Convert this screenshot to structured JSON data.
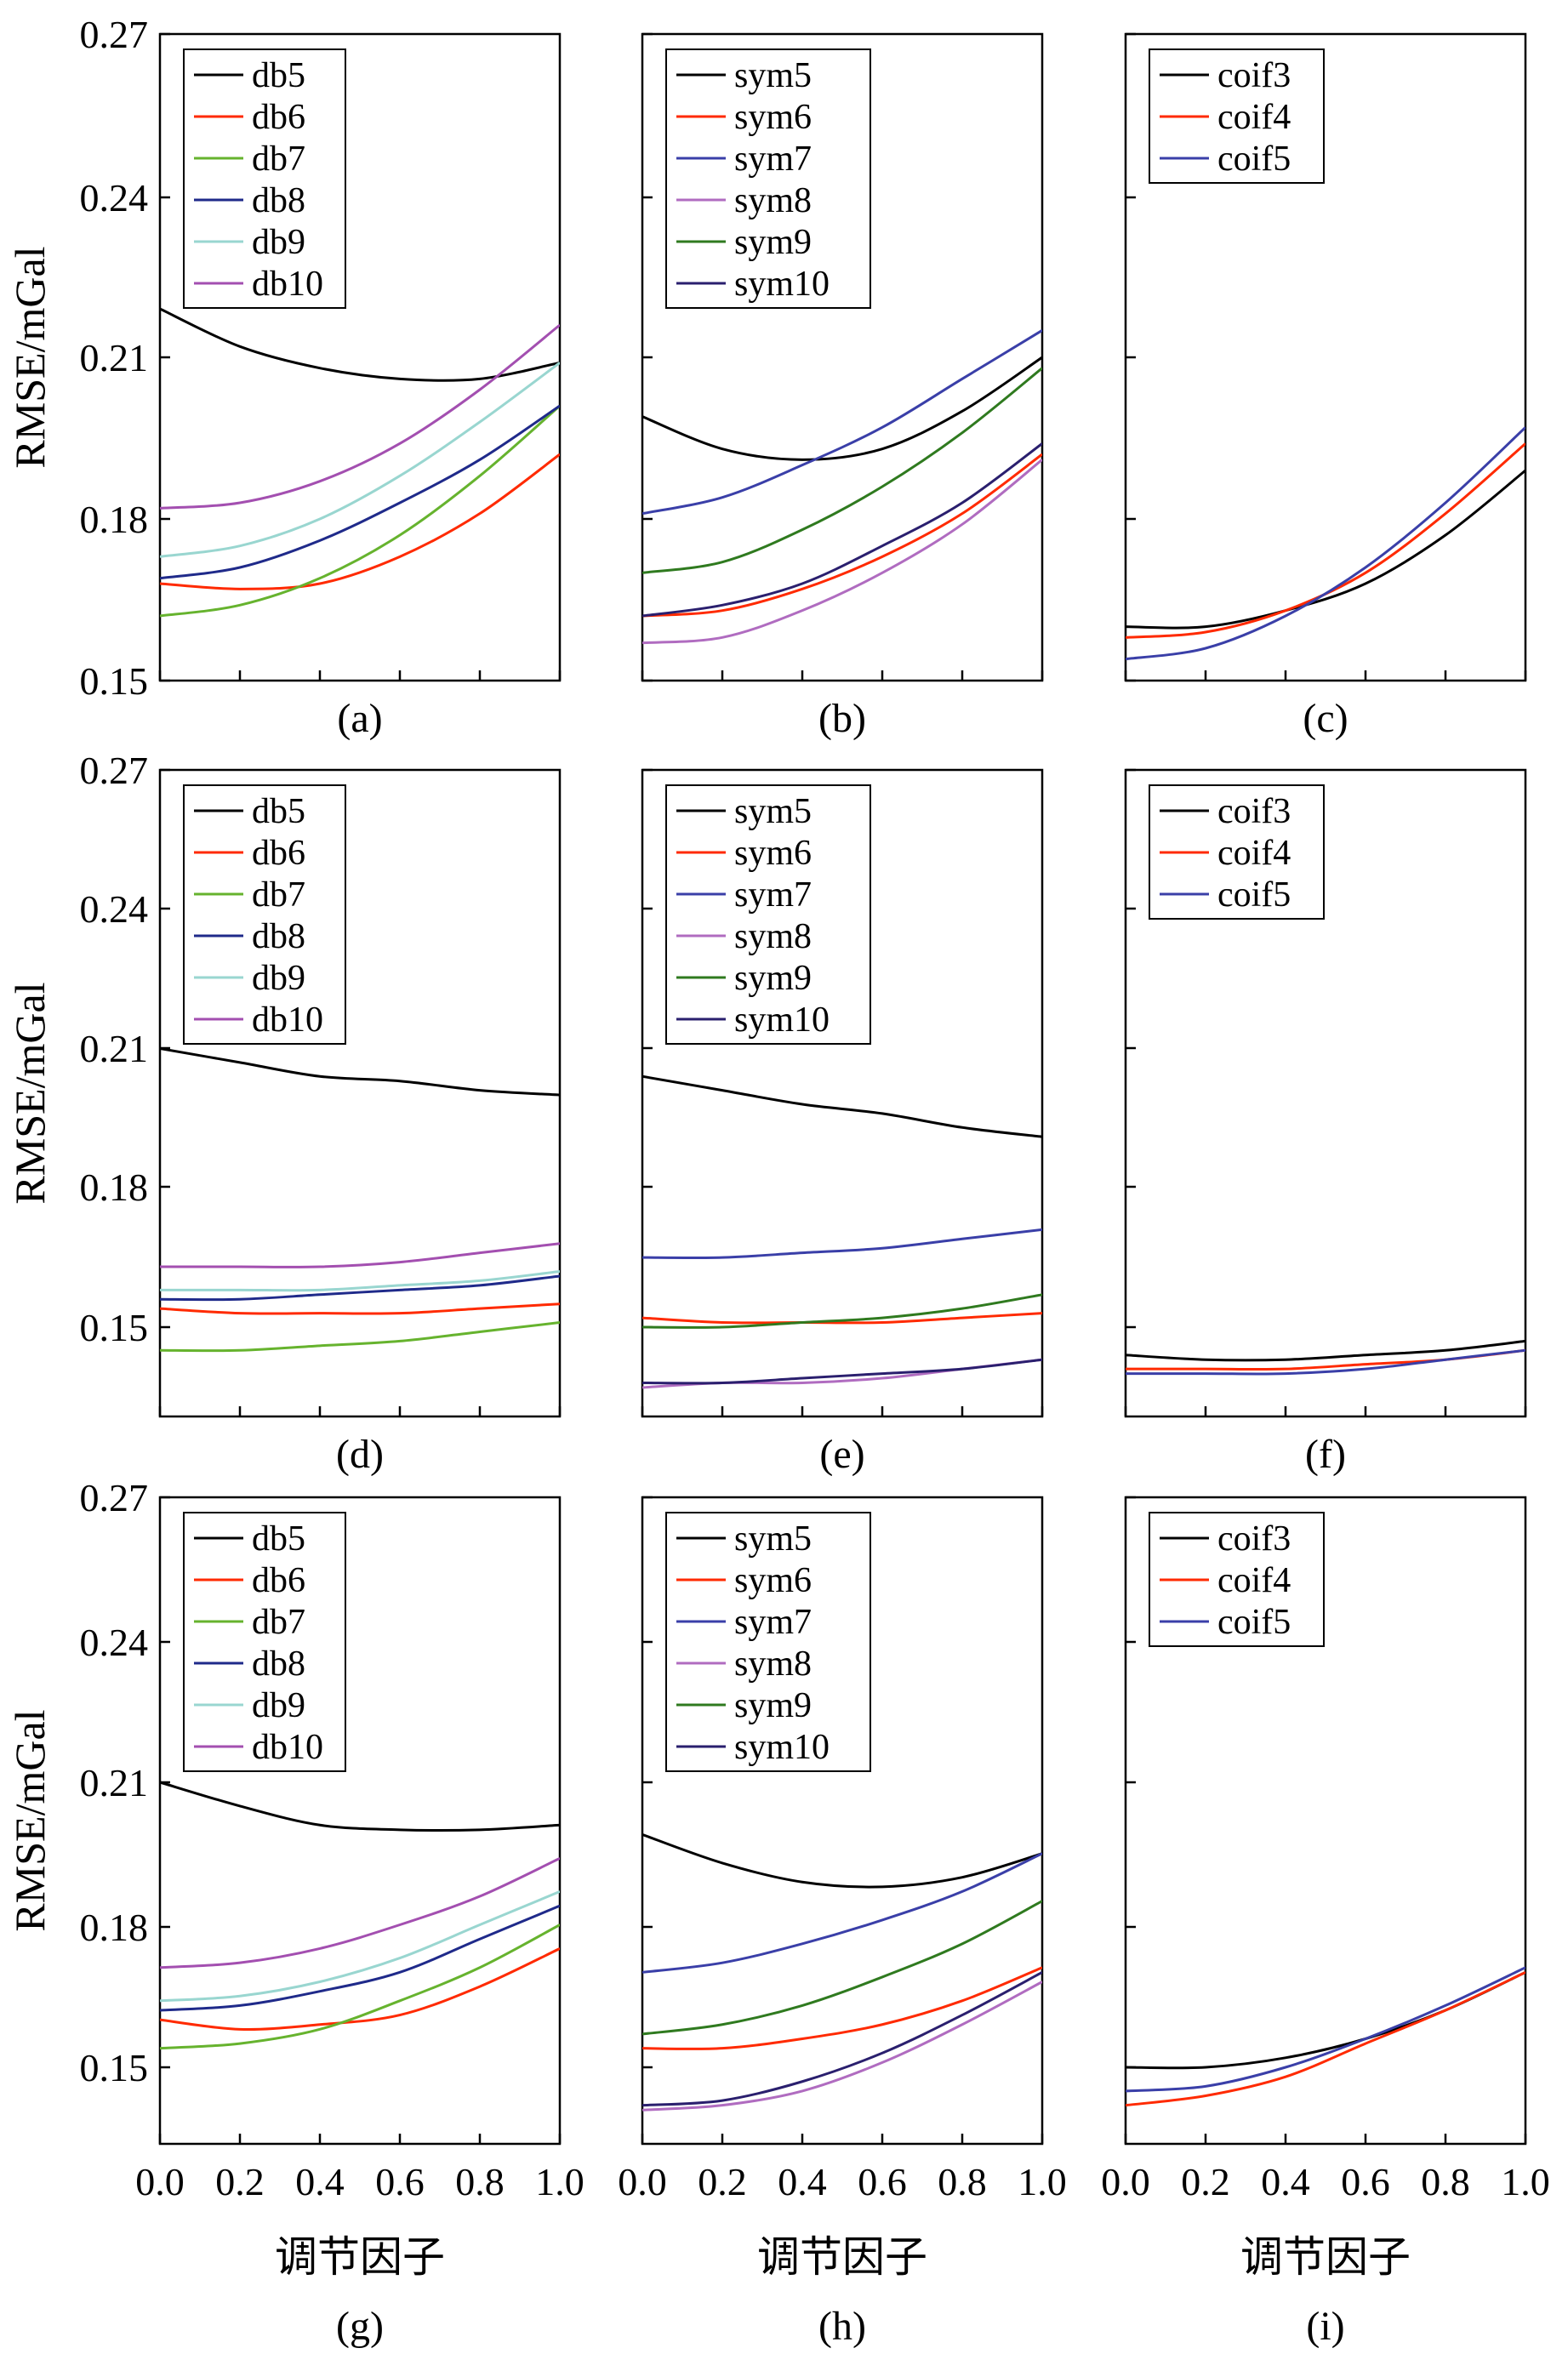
{
  "figure": {
    "ylabel": "RMSE/mGal",
    "xlabel": "调节因子",
    "x_ticks": [
      "0.0",
      "0.2",
      "0.4",
      "0.6",
      "0.8",
      "1.0"
    ],
    "y_ticks": [
      "0.15",
      "0.18",
      "0.21",
      "0.24",
      "0.27"
    ]
  },
  "colors": {
    "db5": "#000000",
    "db6": "#ff2a00",
    "db7": "#66b32e",
    "db8": "#1f2a8a",
    "db9": "#99d6d0",
    "db10": "#a34fb0",
    "sym5": "#000000",
    "sym6": "#ff2a00",
    "sym7": "#3a3fa8",
    "sym8": "#b06cc0",
    "sym9": "#2f7a1f",
    "sym10": "#2a1f6e",
    "coif3": "#000000",
    "coif4": "#ff2a00",
    "coif5": "#3a3fa8"
  },
  "chart_data": [
    {
      "id": "a",
      "type": "line",
      "title": "(a)",
      "ylim": [
        0.15,
        0.27
      ],
      "xlim": [
        0,
        1
      ],
      "x": [
        0,
        0.2,
        0.4,
        0.6,
        0.8,
        1.0
      ],
      "series": [
        {
          "name": "db5",
          "values": [
            0.219,
            0.212,
            0.208,
            0.206,
            0.206,
            0.209
          ]
        },
        {
          "name": "db6",
          "values": [
            0.168,
            0.167,
            0.168,
            0.173,
            0.181,
            0.192
          ]
        },
        {
          "name": "db7",
          "values": [
            0.162,
            0.164,
            0.169,
            0.177,
            0.188,
            0.201
          ]
        },
        {
          "name": "db8",
          "values": [
            0.169,
            0.171,
            0.176,
            0.183,
            0.191,
            0.201
          ]
        },
        {
          "name": "db9",
          "values": [
            0.173,
            0.175,
            0.18,
            0.188,
            0.198,
            0.209
          ]
        },
        {
          "name": "db10",
          "values": [
            0.182,
            0.183,
            0.187,
            0.194,
            0.204,
            0.216
          ]
        }
      ]
    },
    {
      "id": "b",
      "type": "line",
      "title": "(b)",
      "ylim": [
        0.15,
        0.27
      ],
      "xlim": [
        0,
        1
      ],
      "x": [
        0,
        0.2,
        0.4,
        0.6,
        0.8,
        1.0
      ],
      "series": [
        {
          "name": "sym5",
          "values": [
            0.199,
            0.193,
            0.191,
            0.193,
            0.2,
            0.21
          ]
        },
        {
          "name": "sym6",
          "values": [
            0.162,
            0.163,
            0.167,
            0.173,
            0.181,
            0.192
          ]
        },
        {
          "name": "sym7",
          "values": [
            0.181,
            0.184,
            0.19,
            0.197,
            0.206,
            0.215
          ]
        },
        {
          "name": "sym8",
          "values": [
            0.157,
            0.158,
            0.163,
            0.17,
            0.179,
            0.191
          ]
        },
        {
          "name": "sym9",
          "values": [
            0.17,
            0.172,
            0.178,
            0.186,
            0.196,
            0.208
          ]
        },
        {
          "name": "sym10",
          "values": [
            0.162,
            0.164,
            0.168,
            0.175,
            0.183,
            0.194
          ]
        }
      ]
    },
    {
      "id": "c",
      "type": "line",
      "title": "(c)",
      "ylim": [
        0.15,
        0.27
      ],
      "xlim": [
        0,
        1
      ],
      "x": [
        0,
        0.2,
        0.4,
        0.6,
        0.8,
        1.0
      ],
      "series": [
        {
          "name": "coif3",
          "values": [
            0.16,
            0.16,
            0.163,
            0.168,
            0.177,
            0.189
          ]
        },
        {
          "name": "coif4",
          "values": [
            0.158,
            0.159,
            0.163,
            0.17,
            0.181,
            0.194
          ]
        },
        {
          "name": "coif5",
          "values": [
            0.154,
            0.156,
            0.162,
            0.171,
            0.183,
            0.197
          ]
        }
      ]
    },
    {
      "id": "d",
      "type": "line",
      "title": "(d)",
      "ylim": [
        0.13,
        0.27
      ],
      "xlim": [
        0,
        1
      ],
      "x": [
        0,
        0.2,
        0.4,
        0.6,
        0.8,
        1.0
      ],
      "series": [
        {
          "name": "db5",
          "values": [
            0.21,
            0.207,
            0.204,
            0.203,
            0.201,
            0.2
          ]
        },
        {
          "name": "db6",
          "values": [
            0.154,
            0.153,
            0.153,
            0.153,
            0.154,
            0.155
          ]
        },
        {
          "name": "db7",
          "values": [
            0.145,
            0.145,
            0.146,
            0.147,
            0.149,
            0.151
          ]
        },
        {
          "name": "db8",
          "values": [
            0.156,
            0.156,
            0.157,
            0.158,
            0.159,
            0.161
          ]
        },
        {
          "name": "db9",
          "values": [
            0.158,
            0.158,
            0.158,
            0.159,
            0.16,
            0.162
          ]
        },
        {
          "name": "db10",
          "values": [
            0.163,
            0.163,
            0.163,
            0.164,
            0.166,
            0.168
          ]
        }
      ]
    },
    {
      "id": "e",
      "type": "line",
      "title": "(e)",
      "ylim": [
        0.13,
        0.27
      ],
      "xlim": [
        0,
        1
      ],
      "x": [
        0,
        0.2,
        0.4,
        0.6,
        0.8,
        1.0
      ],
      "series": [
        {
          "name": "sym5",
          "values": [
            0.204,
            0.201,
            0.198,
            0.196,
            0.193,
            0.191
          ]
        },
        {
          "name": "sym6",
          "values": [
            0.152,
            0.151,
            0.151,
            0.151,
            0.152,
            0.153
          ]
        },
        {
          "name": "sym7",
          "values": [
            0.165,
            0.165,
            0.166,
            0.167,
            0.169,
            0.171
          ]
        },
        {
          "name": "sym8",
          "values": [
            0.137,
            0.138,
            0.138,
            0.139,
            0.141,
            0.143
          ]
        },
        {
          "name": "sym9",
          "values": [
            0.15,
            0.15,
            0.151,
            0.152,
            0.154,
            0.157
          ]
        },
        {
          "name": "sym10",
          "values": [
            0.138,
            0.138,
            0.139,
            0.14,
            0.141,
            0.143
          ]
        }
      ]
    },
    {
      "id": "f",
      "type": "line",
      "title": "(f)",
      "ylim": [
        0.13,
        0.27
      ],
      "xlim": [
        0,
        1
      ],
      "x": [
        0,
        0.2,
        0.4,
        0.6,
        0.8,
        1.0
      ],
      "series": [
        {
          "name": "coif3",
          "values": [
            0.144,
            0.143,
            0.143,
            0.144,
            0.145,
            0.147
          ]
        },
        {
          "name": "coif4",
          "values": [
            0.141,
            0.141,
            0.141,
            0.142,
            0.143,
            0.145
          ]
        },
        {
          "name": "coif5",
          "values": [
            0.14,
            0.14,
            0.14,
            0.141,
            0.143,
            0.145
          ]
        }
      ]
    },
    {
      "id": "g",
      "type": "line",
      "title": "(g)",
      "ylim": [
        0.13,
        0.27
      ],
      "xlim": [
        0,
        1
      ],
      "x": [
        0,
        0.2,
        0.4,
        0.6,
        0.8,
        1.0
      ],
      "series": [
        {
          "name": "db5",
          "values": [
            0.21,
            0.205,
            0.201,
            0.2,
            0.2,
            0.201
          ]
        },
        {
          "name": "db6",
          "values": [
            0.16,
            0.158,
            0.159,
            0.161,
            0.167,
            0.175
          ]
        },
        {
          "name": "db7",
          "values": [
            0.154,
            0.155,
            0.158,
            0.164,
            0.171,
            0.18
          ]
        },
        {
          "name": "db8",
          "values": [
            0.162,
            0.163,
            0.166,
            0.17,
            0.177,
            0.184
          ]
        },
        {
          "name": "db9",
          "values": [
            0.164,
            0.165,
            0.168,
            0.173,
            0.18,
            0.187
          ]
        },
        {
          "name": "db10",
          "values": [
            0.171,
            0.172,
            0.175,
            0.18,
            0.186,
            0.194
          ]
        }
      ]
    },
    {
      "id": "h",
      "type": "line",
      "title": "(h)",
      "ylim": [
        0.13,
        0.27
      ],
      "xlim": [
        0,
        1
      ],
      "x": [
        0,
        0.2,
        0.4,
        0.6,
        0.8,
        1.0
      ],
      "series": [
        {
          "name": "sym5",
          "values": [
            0.199,
            0.193,
            0.189,
            0.188,
            0.19,
            0.195
          ]
        },
        {
          "name": "sym6",
          "values": [
            0.154,
            0.154,
            0.156,
            0.159,
            0.164,
            0.171
          ]
        },
        {
          "name": "sym7",
          "values": [
            0.17,
            0.172,
            0.176,
            0.181,
            0.187,
            0.195
          ]
        },
        {
          "name": "sym8",
          "values": [
            0.141,
            0.142,
            0.145,
            0.151,
            0.159,
            0.168
          ]
        },
        {
          "name": "sym9",
          "values": [
            0.157,
            0.159,
            0.163,
            0.169,
            0.176,
            0.185
          ]
        },
        {
          "name": "sym10",
          "values": [
            0.142,
            0.143,
            0.147,
            0.153,
            0.161,
            0.17
          ]
        }
      ]
    },
    {
      "id": "i",
      "type": "line",
      "title": "(i)",
      "ylim": [
        0.13,
        0.27
      ],
      "xlim": [
        0,
        1
      ],
      "x": [
        0,
        0.2,
        0.4,
        0.6,
        0.8,
        1.0
      ],
      "series": [
        {
          "name": "coif3",
          "values": [
            0.15,
            0.15,
            0.152,
            0.156,
            0.162,
            0.17
          ]
        },
        {
          "name": "coif4",
          "values": [
            0.142,
            0.144,
            0.148,
            0.155,
            0.162,
            0.17
          ]
        },
        {
          "name": "coif5",
          "values": [
            0.145,
            0.146,
            0.15,
            0.156,
            0.163,
            0.171
          ]
        }
      ]
    }
  ]
}
